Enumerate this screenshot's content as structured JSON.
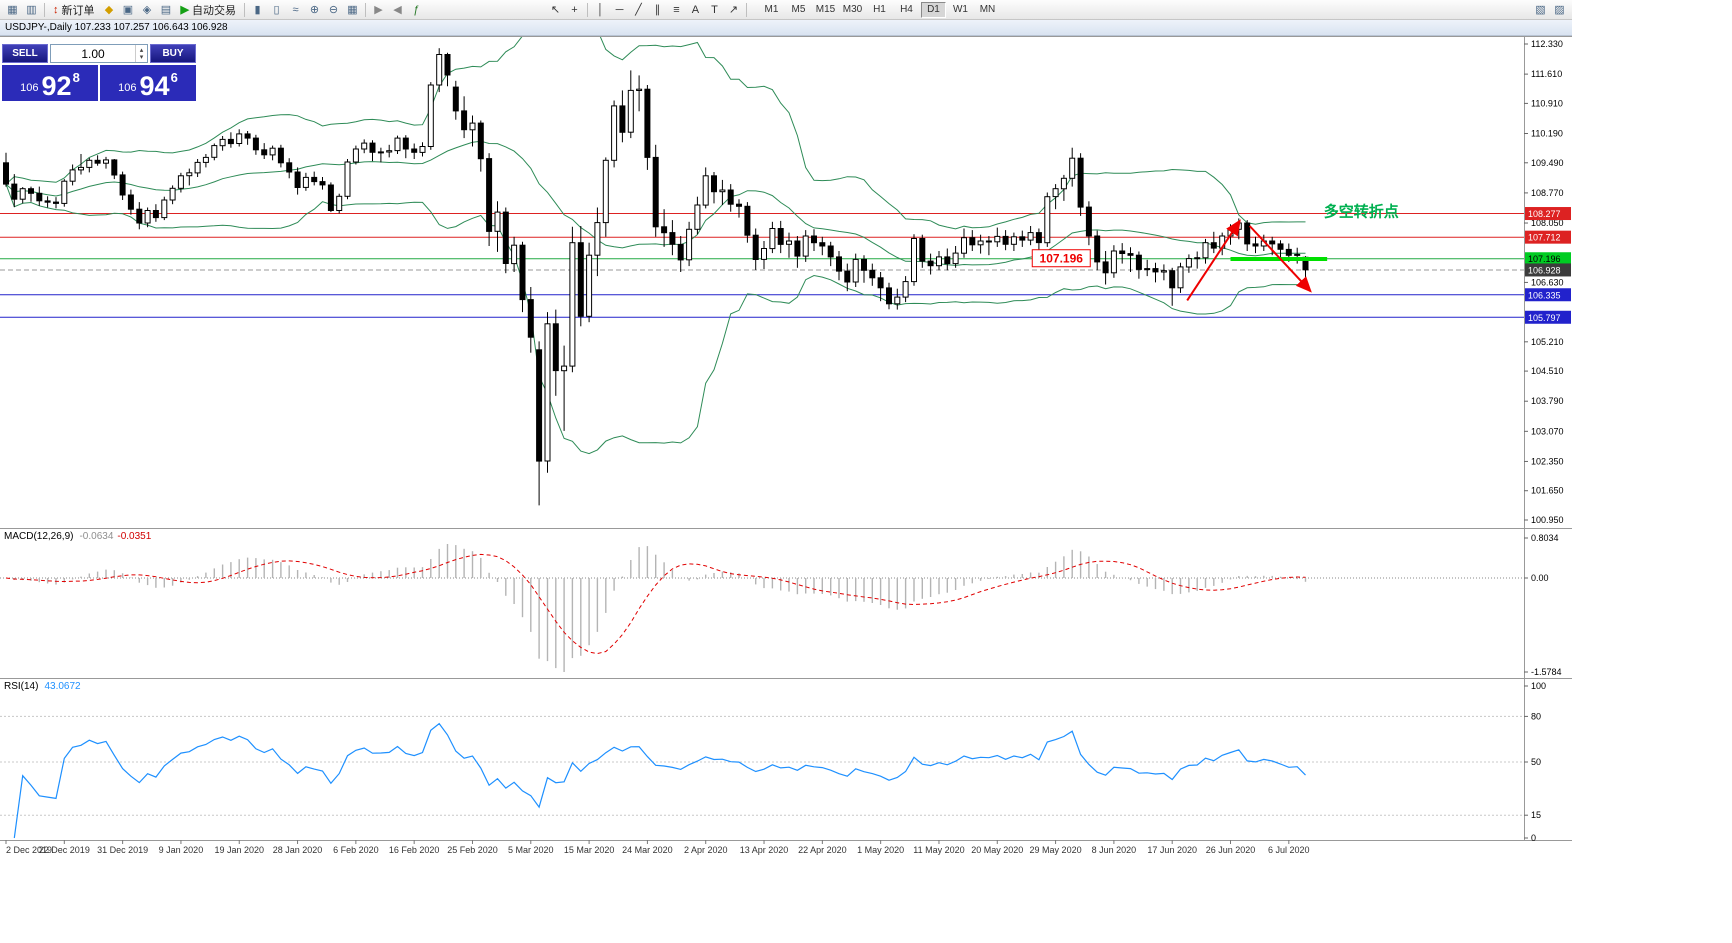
{
  "toolbar": {
    "items": [
      {
        "t": "icon",
        "name": "new-chart-icon",
        "g": "▦",
        "c": "#4a6785"
      },
      {
        "t": "icon",
        "name": "chart-profiles-icon",
        "g": "▥",
        "c": "#4a6785"
      },
      {
        "t": "sep"
      },
      {
        "t": "btn",
        "name": "new-order-button",
        "g": "↕",
        "gc": "#cc2200",
        "label": "新订单"
      },
      {
        "t": "icon",
        "name": "market-watch-icon",
        "g": "◆",
        "c": "#d39e00"
      },
      {
        "t": "icon",
        "name": "data-window-icon",
        "g": "▣",
        "c": "#4a6785"
      },
      {
        "t": "icon",
        "name": "navigator-icon",
        "g": "◈",
        "c": "#4a6785"
      },
      {
        "t": "icon",
        "name": "terminal-icon",
        "g": "▤",
        "c": "#4a6785"
      },
      {
        "t": "btn",
        "name": "autotrading-button",
        "g": "▶",
        "gc": "#15a015",
        "label": "自动交易"
      },
      {
        "t": "sep"
      },
      {
        "t": "icon",
        "name": "bar-chart-icon",
        "g": "▮",
        "c": "#4a6785"
      },
      {
        "t": "icon",
        "name": "candlestick-chart-icon",
        "g": "▯",
        "c": "#4a6785"
      },
      {
        "t": "icon",
        "name": "line-chart-icon",
        "g": "≈",
        "c": "#4a6785"
      },
      {
        "t": "icon",
        "name": "zoom-in-icon",
        "g": "⊕",
        "c": "#4a6785"
      },
      {
        "t": "icon",
        "name": "zoom-out-icon",
        "g": "⊖",
        "c": "#4a6785"
      },
      {
        "t": "icon",
        "name": "tile-windows-icon",
        "g": "▦",
        "c": "#4a6785"
      },
      {
        "t": "sep"
      },
      {
        "t": "icon",
        "name": "auto-scroll-icon",
        "g": "▶",
        "c": "#888888"
      },
      {
        "t": "icon",
        "name": "chart-shift-icon",
        "g": "◀",
        "c": "#888888"
      },
      {
        "t": "icon",
        "name": "indicators-icon",
        "g": "ƒ",
        "c": "#2a7a2a"
      },
      {
        "t": "gap"
      },
      {
        "t": "icon",
        "name": "cursor-icon",
        "g": "↖",
        "c": "#333333"
      },
      {
        "t": "icon",
        "name": "crosshair-icon",
        "g": "+",
        "c": "#333333"
      },
      {
        "t": "sep"
      },
      {
        "t": "icon",
        "name": "vertical-line-icon",
        "g": "│",
        "c": "#333333"
      },
      {
        "t": "icon",
        "name": "horizontal-line-icon",
        "g": "─",
        "c": "#333333"
      },
      {
        "t": "icon",
        "name": "trendline-icon",
        "g": "╱",
        "c": "#333333"
      },
      {
        "t": "icon",
        "name": "equidistant-channel-icon",
        "g": "∥",
        "c": "#333333"
      },
      {
        "t": "icon",
        "name": "fibonacci-icon",
        "g": "≡",
        "c": "#333333"
      },
      {
        "t": "icon",
        "name": "text-icon",
        "g": "A",
        "c": "#333333"
      },
      {
        "t": "icon",
        "name": "text-label-icon",
        "g": "T",
        "c": "#333333"
      },
      {
        "t": "icon",
        "name": "arrows-tool-icon",
        "g": "↗",
        "c": "#333333"
      },
      {
        "t": "sep"
      }
    ],
    "timeframes": [
      "M1",
      "M5",
      "M15",
      "M30",
      "H1",
      "H4",
      "D1",
      "W1",
      "MN"
    ],
    "active_timeframe": "D1",
    "right_items": [
      {
        "name": "chart-dock-icon",
        "g": "▧"
      },
      {
        "name": "chart-float-icon",
        "g": "▨"
      }
    ]
  },
  "chart_window": {
    "title": "USDJPY-,Daily 107.233 107.257 106.643 106.928"
  },
  "one_click": {
    "sell_label": "SELL",
    "buy_label": "BUY",
    "volume": "1.00",
    "sell_small": "106",
    "sell_big": "92",
    "sell_sup": "8",
    "buy_small": "106",
    "buy_big": "94",
    "buy_sup": "6"
  },
  "macd": {
    "name": "MACD(12,26,9)",
    "main": "-0.0634",
    "signal": "-0.0351",
    "axis": [
      "0.8034",
      "0.00",
      "-1.5784"
    ]
  },
  "rsi": {
    "name": "RSI(14)",
    "value": "43.0672",
    "axis": [
      "100",
      "80",
      "50",
      "15",
      "0"
    ],
    "levels": [
      80,
      50,
      15
    ]
  },
  "chart_data": {
    "type": "candlestick",
    "symbol": "USDJPY",
    "period": "Daily",
    "indicators": {
      "bollinger": {
        "period": 20,
        "deviation": 2,
        "color": "#2E8B57"
      },
      "macd": "MACD(12,26,9)",
      "rsi": "RSI(14)"
    },
    "price_ticks": [
      "112.330",
      "111.610",
      "110.910",
      "110.190",
      "109.490",
      "108.770",
      "108.050",
      "106.630",
      "105.210",
      "104.510",
      "103.790",
      "103.070",
      "102.350",
      "101.650",
      "100.950"
    ],
    "badges": [
      {
        "text": "108.277",
        "bg": "#dd2222",
        "fg": "#ffffff"
      },
      {
        "text": "107.712",
        "bg": "#dd2222",
        "fg": "#ffffff"
      },
      {
        "text": "107.196",
        "bg": "#00cc22",
        "fg": "#000000"
      },
      {
        "text": "106.928",
        "bg": "#3c3c3c",
        "fg": "#ffffff"
      },
      {
        "text": "106.335",
        "bg": "#2222cc",
        "fg": "#ffffff"
      },
      {
        "text": "105.797",
        "bg": "#2222cc",
        "fg": "#ffffff"
      }
    ],
    "hlines": [
      {
        "price": 108.277,
        "color": "#dd2222",
        "width": 1
      },
      {
        "price": 107.712,
        "color": "#dd2222",
        "width": 1
      },
      {
        "price": 107.196,
        "color": "#22aa44",
        "width": 1
      },
      {
        "price": 106.928,
        "color": "#999999",
        "width": 1,
        "style": "dash"
      },
      {
        "price": 106.335,
        "color": "#2222cc",
        "width": 1
      },
      {
        "price": 105.797,
        "color": "#2222cc",
        "width": 1
      }
    ],
    "annotations": {
      "price_label": {
        "text": "107.196",
        "i": 123.2,
        "price": 107.196
      },
      "segment": {
        "i1": 147.0,
        "i2": 158.6,
        "price": 107.19,
        "color": "#00e000",
        "width": 4
      },
      "arrows": [
        {
          "i1": 141.8,
          "p1": 106.2,
          "i2": 148.1,
          "p2": 108.1
        },
        {
          "i1": 149.3,
          "p1": 107.98,
          "i2": 156.6,
          "p2": 106.42
        }
      ],
      "note": {
        "text": "多空转折点",
        "i": 158.2,
        "price": 108.2,
        "color": "#00b050"
      }
    },
    "date_labels": [
      "2 Dec 2019",
      "22 Dec 2019",
      "31 Dec 2019",
      "9 Jan 2020",
      "19 Jan 2020",
      "28 Jan 2020",
      "6 Feb 2020",
      "16 Feb 2020",
      "25 Feb 2020",
      "5 Mar 2020",
      "15 Mar 2020",
      "24 Mar 2020",
      "2 Apr 2020",
      "13 Apr 2020",
      "22 Apr 2020",
      "1 May 2020",
      "11 May 2020",
      "20 May 2020",
      "29 May 2020",
      "8 Jun 2020",
      "17 Jun 2020",
      "26 Jun 2020",
      "6 Jul 2020"
    ],
    "candles": [
      [
        109.49,
        109.73,
        108.92,
        108.98
      ],
      [
        108.98,
        109.22,
        108.43,
        108.62
      ],
      [
        108.62,
        108.91,
        108.52,
        108.87
      ],
      [
        108.87,
        108.92,
        108.56,
        108.76
      ],
      [
        108.76,
        108.92,
        108.46,
        108.58
      ],
      [
        108.58,
        108.69,
        108.42,
        108.55
      ],
      [
        108.55,
        108.67,
        108.4,
        108.52
      ],
      [
        108.52,
        109.1,
        108.44,
        109.05
      ],
      [
        109.05,
        109.45,
        108.95,
        109.32
      ],
      [
        109.32,
        109.7,
        109.21,
        109.38
      ],
      [
        109.38,
        109.61,
        109.26,
        109.55
      ],
      [
        109.55,
        109.67,
        109.42,
        109.48
      ],
      [
        109.48,
        109.63,
        109.35,
        109.56
      ],
      [
        109.56,
        109.58,
        109.1,
        109.2
      ],
      [
        109.2,
        109.28,
        108.6,
        108.72
      ],
      [
        108.72,
        108.85,
        108.25,
        108.38
      ],
      [
        108.38,
        108.55,
        107.9,
        108.05
      ],
      [
        108.05,
        108.42,
        107.95,
        108.35
      ],
      [
        108.35,
        108.5,
        108.08,
        108.18
      ],
      [
        108.18,
        108.68,
        108.12,
        108.6
      ],
      [
        108.6,
        108.95,
        108.5,
        108.88
      ],
      [
        108.88,
        109.25,
        108.78,
        109.18
      ],
      [
        109.18,
        109.35,
        108.95,
        109.25
      ],
      [
        109.25,
        109.58,
        109.15,
        109.5
      ],
      [
        109.5,
        109.7,
        109.38,
        109.62
      ],
      [
        109.62,
        109.95,
        109.55,
        109.9
      ],
      [
        109.9,
        110.13,
        109.78,
        110.05
      ],
      [
        110.05,
        110.22,
        109.85,
        109.95
      ],
      [
        109.95,
        110.29,
        109.88,
        110.18
      ],
      [
        110.18,
        110.25,
        109.92,
        110.08
      ],
      [
        110.08,
        110.16,
        109.68,
        109.8
      ],
      [
        109.8,
        109.96,
        109.58,
        109.68
      ],
      [
        109.68,
        109.9,
        109.55,
        109.84
      ],
      [
        109.84,
        109.92,
        109.38,
        109.49
      ],
      [
        109.49,
        109.6,
        109.12,
        109.27
      ],
      [
        109.27,
        109.38,
        108.73,
        108.9
      ],
      [
        108.9,
        109.25,
        108.82,
        109.14
      ],
      [
        109.14,
        109.28,
        108.95,
        109.04
      ],
      [
        109.04,
        109.15,
        108.85,
        108.96
      ],
      [
        108.96,
        109.02,
        108.31,
        108.35
      ],
      [
        108.35,
        108.75,
        108.28,
        108.69
      ],
      [
        108.69,
        109.58,
        108.62,
        109.51
      ],
      [
        109.51,
        109.9,
        109.45,
        109.82
      ],
      [
        109.82,
        110.05,
        109.72,
        109.96
      ],
      [
        109.96,
        110.03,
        109.53,
        109.74
      ],
      [
        109.74,
        109.85,
        109.5,
        109.75
      ],
      [
        109.75,
        109.92,
        109.62,
        109.78
      ],
      [
        109.78,
        110.14,
        109.7,
        110.08
      ],
      [
        110.08,
        110.15,
        109.6,
        109.82
      ],
      [
        109.82,
        109.95,
        109.58,
        109.74
      ],
      [
        109.74,
        109.98,
        109.64,
        109.88
      ],
      [
        109.88,
        111.42,
        109.8,
        111.35
      ],
      [
        111.35,
        112.23,
        111.18,
        112.08
      ],
      [
        112.08,
        112.12,
        111.32,
        111.59
      ],
      [
        111.3,
        111.45,
        110.52,
        110.73
      ],
      [
        110.73,
        111.08,
        110.08,
        110.28
      ],
      [
        110.28,
        110.62,
        109.88,
        110.44
      ],
      [
        110.44,
        110.5,
        109.28,
        109.59
      ],
      [
        109.59,
        109.72,
        107.5,
        107.85
      ],
      [
        107.85,
        108.57,
        107.36,
        108.31
      ],
      [
        108.31,
        108.42,
        106.85,
        107.08
      ],
      [
        107.08,
        107.72,
        106.88,
        107.52
      ],
      [
        107.52,
        107.6,
        105.92,
        106.22
      ],
      [
        106.22,
        106.52,
        104.95,
        105.32
      ],
      [
        105.02,
        105.22,
        101.3,
        102.36
      ],
      [
        102.36,
        105.92,
        102.08,
        105.64
      ],
      [
        105.64,
        105.98,
        103.92,
        104.52
      ],
      [
        104.52,
        105.12,
        103.08,
        104.63
      ],
      [
        104.63,
        107.96,
        104.48,
        107.58
      ],
      [
        107.58,
        107.98,
        105.58,
        105.82
      ],
      [
        105.82,
        107.58,
        105.68,
        107.28
      ],
      [
        107.28,
        108.42,
        106.78,
        108.06
      ],
      [
        108.06,
        109.62,
        107.72,
        109.55
      ],
      [
        109.55,
        110.98,
        109.38,
        110.85
      ],
      [
        110.85,
        111.22,
        109.98,
        110.22
      ],
      [
        110.22,
        111.7,
        110.08,
        111.22
      ],
      [
        111.22,
        111.58,
        110.72,
        111.25
      ],
      [
        111.25,
        111.35,
        109.32,
        109.62
      ],
      [
        109.62,
        109.92,
        107.72,
        107.96
      ],
      [
        107.96,
        108.38,
        107.48,
        107.82
      ],
      [
        107.82,
        108.12,
        107.28,
        107.54
      ],
      [
        107.54,
        107.74,
        106.88,
        107.17
      ],
      [
        107.17,
        108.08,
        107.02,
        107.9
      ],
      [
        107.9,
        108.68,
        107.78,
        108.48
      ],
      [
        108.48,
        109.38,
        108.4,
        109.18
      ],
      [
        109.18,
        109.27,
        108.52,
        108.8
      ],
      [
        108.8,
        109.08,
        108.48,
        108.84
      ],
      [
        108.84,
        108.98,
        108.32,
        108.5
      ],
      [
        108.5,
        108.62,
        108.18,
        108.45
      ],
      [
        108.45,
        108.55,
        107.58,
        107.76
      ],
      [
        107.76,
        107.92,
        106.93,
        107.18
      ],
      [
        107.18,
        107.62,
        106.95,
        107.44
      ],
      [
        107.44,
        108.08,
        107.33,
        107.92
      ],
      [
        107.92,
        108.1,
        107.33,
        107.54
      ],
      [
        107.54,
        107.82,
        107.22,
        107.62
      ],
      [
        107.62,
        107.74,
        106.98,
        107.26
      ],
      [
        107.26,
        107.88,
        107.12,
        107.74
      ],
      [
        107.74,
        107.9,
        107.38,
        107.58
      ],
      [
        107.58,
        107.72,
        107.28,
        107.5
      ],
      [
        107.5,
        107.6,
        107.02,
        107.24
      ],
      [
        107.24,
        107.38,
        106.68,
        106.9
      ],
      [
        106.9,
        107.08,
        106.42,
        106.64
      ],
      [
        106.64,
        107.32,
        106.52,
        107.18
      ],
      [
        107.18,
        107.28,
        106.62,
        106.92
      ],
      [
        106.92,
        107.08,
        106.55,
        106.74
      ],
      [
        106.74,
        106.88,
        106.18,
        106.5
      ],
      [
        106.5,
        106.62,
        105.99,
        106.12
      ],
      [
        106.12,
        106.48,
        105.98,
        106.28
      ],
      [
        106.28,
        106.78,
        106.16,
        106.65
      ],
      [
        106.65,
        107.78,
        106.55,
        107.68
      ],
      [
        107.68,
        107.77,
        106.98,
        107.14
      ],
      [
        107.14,
        107.32,
        106.82,
        107.03
      ],
      [
        107.03,
        107.38,
        106.92,
        107.24
      ],
      [
        107.24,
        107.44,
        106.92,
        107.08
      ],
      [
        107.08,
        107.5,
        106.98,
        107.33
      ],
      [
        107.33,
        107.92,
        107.22,
        107.7
      ],
      [
        107.7,
        107.88,
        107.38,
        107.53
      ],
      [
        107.53,
        107.77,
        107.32,
        107.62
      ],
      [
        107.62,
        107.74,
        107.28,
        107.6
      ],
      [
        107.6,
        107.94,
        107.48,
        107.73
      ],
      [
        107.73,
        107.88,
        107.4,
        107.54
      ],
      [
        107.54,
        107.82,
        107.38,
        107.72
      ],
      [
        107.72,
        107.87,
        107.48,
        107.64
      ],
      [
        107.64,
        107.98,
        107.52,
        107.82
      ],
      [
        107.82,
        107.92,
        107.32,
        107.58
      ],
      [
        107.58,
        108.78,
        107.48,
        108.68
      ],
      [
        108.68,
        108.98,
        108.38,
        108.87
      ],
      [
        108.87,
        109.2,
        108.58,
        109.12
      ],
      [
        109.12,
        109.85,
        108.92,
        109.6
      ],
      [
        109.6,
        109.72,
        108.22,
        108.43
      ],
      [
        108.43,
        108.57,
        107.52,
        107.74
      ],
      [
        107.74,
        107.87,
        106.92,
        107.12
      ],
      [
        107.12,
        107.38,
        106.58,
        106.86
      ],
      [
        106.86,
        107.52,
        106.74,
        107.38
      ],
      [
        107.38,
        107.57,
        107.08,
        107.32
      ],
      [
        107.32,
        107.47,
        106.88,
        107.28
      ],
      [
        107.28,
        107.37,
        106.72,
        106.94
      ],
      [
        106.94,
        107.17,
        106.78,
        106.96
      ],
      [
        106.96,
        107.1,
        106.63,
        106.88
      ],
      [
        106.88,
        107.06,
        106.68,
        106.91
      ],
      [
        106.91,
        106.98,
        106.07,
        106.5
      ],
      [
        106.5,
        107.1,
        106.38,
        107.0
      ],
      [
        107.0,
        107.3,
        106.86,
        107.2
      ],
      [
        107.2,
        107.37,
        106.96,
        107.22
      ],
      [
        107.22,
        107.67,
        107.08,
        107.58
      ],
      [
        107.58,
        107.84,
        107.33,
        107.45
      ],
      [
        107.45,
        107.82,
        107.28,
        107.74
      ],
      [
        107.74,
        108.02,
        107.53,
        107.9
      ],
      [
        107.9,
        108.16,
        107.66,
        108.05
      ],
      [
        108.05,
        108.12,
        107.38,
        107.55
      ],
      [
        107.55,
        107.72,
        107.33,
        107.5
      ],
      [
        107.5,
        107.77,
        107.38,
        107.62
      ],
      [
        107.62,
        107.72,
        107.28,
        107.55
      ],
      [
        107.55,
        107.64,
        107.22,
        107.42
      ],
      [
        107.42,
        107.56,
        107.12,
        107.28
      ],
      [
        107.28,
        107.46,
        107.08,
        107.3
      ],
      [
        107.23,
        107.26,
        106.64,
        106.93
      ]
    ]
  }
}
